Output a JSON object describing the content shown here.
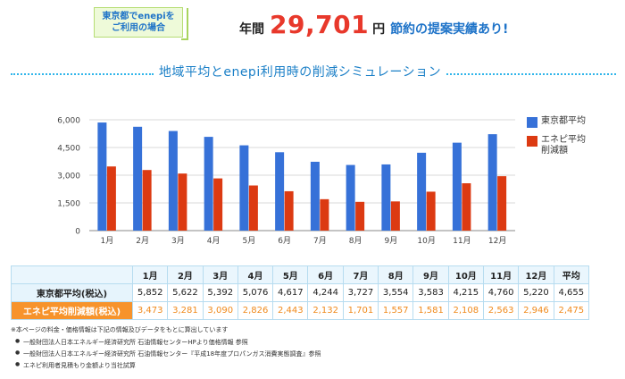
{
  "banner": {
    "badge_line1": "東京都でenepiを",
    "badge_line2": "ご利用の場合",
    "pre": "年間",
    "amount": "29,701",
    "unit": "円",
    "post": "節約の提案実績あり!"
  },
  "section_title": "地域平均とenepi利用時の削減シミュレーション",
  "colors": {
    "tokyo": "#3671d8",
    "enepi": "#dc3a12",
    "accent": "#e8382b",
    "orange": "#f7932b"
  },
  "chart_data": {
    "type": "bar",
    "categories": [
      "1月",
      "2月",
      "3月",
      "4月",
      "5月",
      "6月",
      "7月",
      "8月",
      "9月",
      "10月",
      "11月",
      "12月"
    ],
    "series": [
      {
        "name": "東京都平均",
        "values": [
          5852,
          5622,
          5392,
          5076,
          4617,
          4244,
          3727,
          3554,
          3583,
          4215,
          4760,
          5220
        ]
      },
      {
        "name": "エネピ平均削減額",
        "values": [
          3473,
          3281,
          3090,
          2826,
          2443,
          2132,
          1701,
          1557,
          1581,
          2108,
          2563,
          2946
        ]
      }
    ],
    "ylim": [
      0,
      6000
    ],
    "yticks": [
      "0",
      "1,500",
      "3,000",
      "4,500",
      "6,000"
    ],
    "ytick_values": [
      0,
      1500,
      3000,
      4500,
      6000
    ],
    "grid": true,
    "legend_position": "right"
  },
  "legend": [
    {
      "label": "東京都平均",
      "color": "#3671d8"
    },
    {
      "label": "エネピ平均削減額",
      "color": "#dc3a12"
    }
  ],
  "table": {
    "headers": [
      "1月",
      "2月",
      "3月",
      "4月",
      "5月",
      "6月",
      "7月",
      "8月",
      "9月",
      "10月",
      "11月",
      "12月",
      "平均"
    ],
    "rows": [
      {
        "label": "東京都平均(税込)",
        "values": [
          "5,852",
          "5,622",
          "5,392",
          "5,076",
          "4,617",
          "4,244",
          "3,727",
          "3,554",
          "3,583",
          "4,215",
          "4,760",
          "5,220",
          "4,655"
        ]
      },
      {
        "label": "エネピ平均削減額(税込)",
        "values": [
          "3,473",
          "3,281",
          "3,090",
          "2,826",
          "2,443",
          "2,132",
          "1,701",
          "1,557",
          "1,581",
          "2,108",
          "2,563",
          "2,946",
          "2,475"
        ]
      }
    ]
  },
  "notes": {
    "head": "※本ページの料金・価格情報は下記の情報及びデータをもとに算出しています",
    "items": [
      "一般財団法人日本エネルギー経済研究所 石油情報センターHPより価格情報 参照",
      "一般財団法人日本エネルギー経済研究所 石油情報センター『平成18年度プロパンガス消費実態調査』参照",
      "エネピ利用者見積もり金額より当社試算"
    ]
  }
}
